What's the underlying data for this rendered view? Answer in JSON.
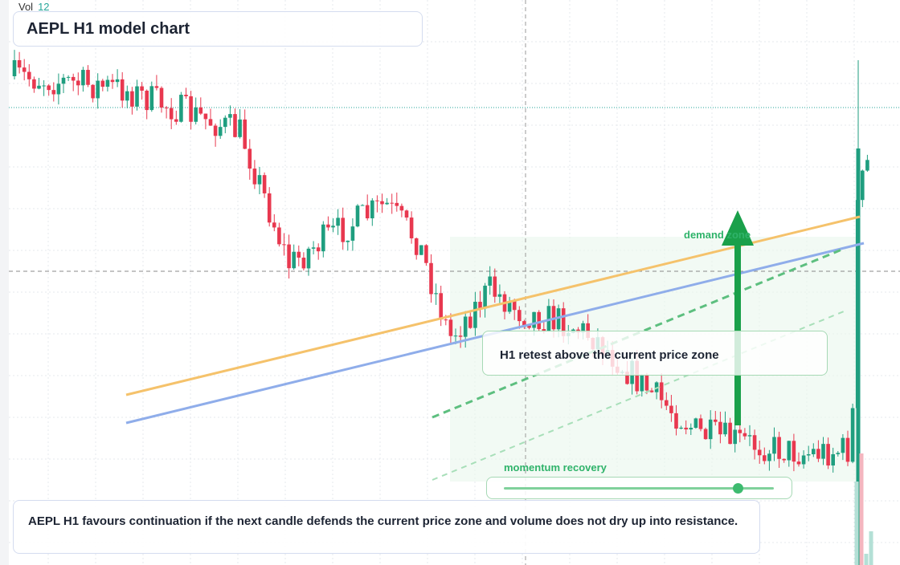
{
  "volume": {
    "label": "Vol",
    "value": "12"
  },
  "header": {
    "title": "AEPL H1 model chart"
  },
  "annotations": {
    "zone": "demand zone",
    "retest": "H1 retest above the current price zone",
    "momentum": "momentum recovery"
  },
  "footer": {
    "note": "AEPL H1 favours continuation if the next candle defends the current price zone and volume does not dry up into resistance."
  }
}
